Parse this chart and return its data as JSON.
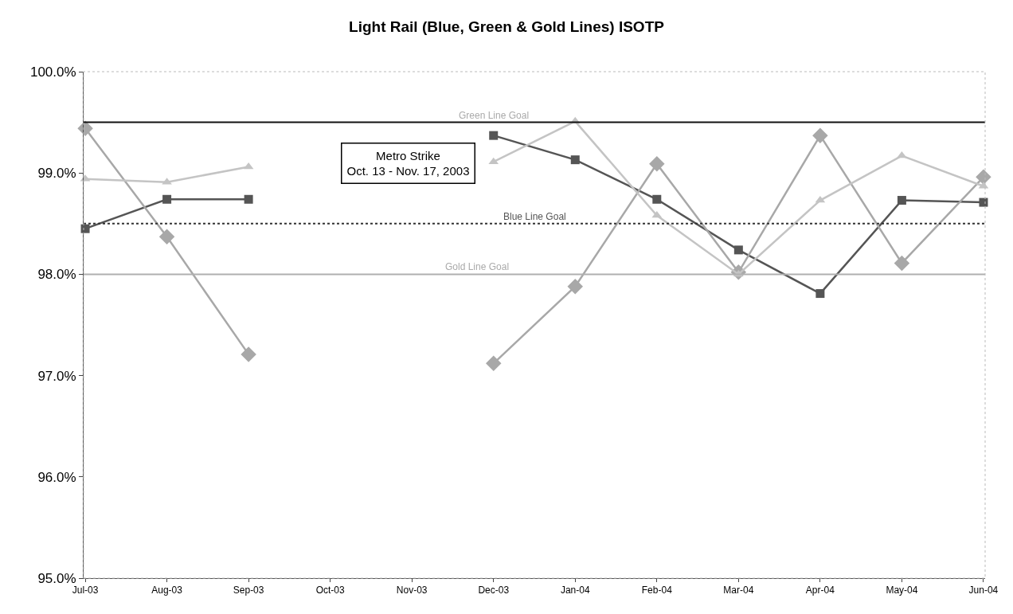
{
  "chart_data": {
    "type": "line",
    "title": "Light Rail (Blue, Green & Gold Lines) ISOTP",
    "categories": [
      "Jul-03",
      "Aug-03",
      "Sep-03",
      "Oct-03",
      "Nov-03",
      "Dec-03",
      "Jan-04",
      "Feb-04",
      "Mar-04",
      "Apr-04",
      "May-04",
      "Jun-04"
    ],
    "series": [
      {
        "color": "#555555",
        "marker": "square",
        "values": [
          98.45,
          98.74,
          98.74,
          null,
          null,
          99.37,
          99.13,
          98.74,
          98.24,
          97.81,
          98.73,
          98.71
        ]
      },
      {
        "color": "#a8a8a8",
        "marker": "diamond",
        "values": [
          99.44,
          98.37,
          97.21,
          null,
          null,
          97.12,
          97.88,
          99.09,
          98.02,
          99.37,
          98.11,
          98.96
        ]
      },
      {
        "color": "#c4c4c4",
        "marker": "triangle",
        "values": [
          98.94,
          98.91,
          99.06,
          null,
          null,
          99.11,
          99.51,
          98.58,
          98.0,
          98.73,
          99.17,
          98.87
        ]
      }
    ],
    "ylim": [
      95,
      100
    ],
    "yticks": [
      {
        "value": 95,
        "label": "95.0%"
      },
      {
        "value": 96,
        "label": "96.0%"
      },
      {
        "value": 97,
        "label": "97.0%"
      },
      {
        "value": 98,
        "label": "98.0%"
      },
      {
        "value": 99,
        "label": "99.0%"
      },
      {
        "value": 100,
        "label": "100.0%"
      }
    ],
    "ref_lines": [
      {
        "axis": "y",
        "value": 99.5,
        "label": "Green Line Goal",
        "color": "#111111",
        "line_style": "solid"
      },
      {
        "axis": "y",
        "value": 98.5,
        "label": "Blue Line Goal",
        "color": "#333333",
        "line_style": "dotted"
      },
      {
        "axis": "y",
        "value": 98.0,
        "label": "Gold Line Goal",
        "color": "#b0b0b0",
        "line_style": "solid"
      }
    ],
    "annotations": [
      "Metro Strike\nOct. 13 - Nov. 17, 2003"
    ]
  }
}
